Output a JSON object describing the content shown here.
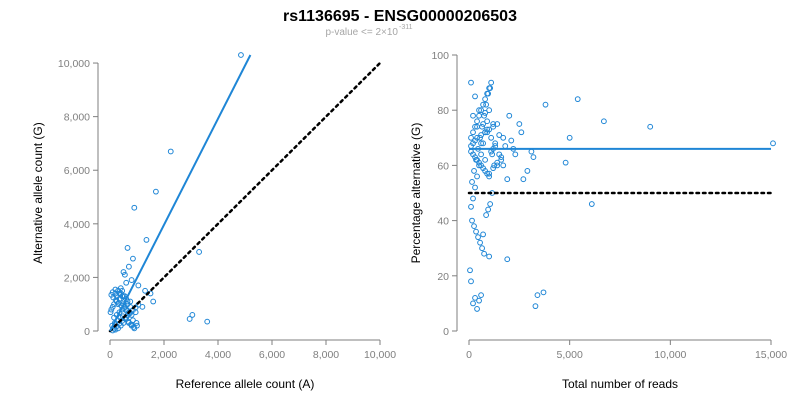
{
  "figure": {
    "title": "rs1136695 - ENSG00000206503",
    "subtitle": "p-value <= 2×10",
    "subtitle_exponent": "-311"
  },
  "colors": {
    "points": "#1f86d6",
    "fit_line": "#1f86d6",
    "reference_line": "#000000",
    "axis": "#7f7f7f"
  },
  "chart_data": [
    {
      "type": "scatter",
      "title": "",
      "xlabel": "Reference allele count (A)",
      "ylabel": "Alternative allele count (G)",
      "xlim": [
        0,
        10000
      ],
      "ylim": [
        0,
        10300
      ],
      "xticks": [
        0,
        2000,
        4000,
        6000,
        8000,
        10000
      ],
      "xtick_labels": [
        "0",
        "2,000",
        "4,000",
        "6,000",
        "8,000",
        "10,000"
      ],
      "yticks": [
        0,
        2000,
        4000,
        6000,
        8000,
        10000
      ],
      "ytick_labels": [
        "0",
        "2,000",
        "4,000",
        "6,000",
        "8,000",
        "10,000"
      ],
      "grid": false,
      "fit_line": {
        "x": [
          0,
          5200
        ],
        "y": [
          0,
          10300
        ]
      },
      "reference_line": {
        "x": [
          0,
          10000
        ],
        "y": [
          0,
          10000
        ],
        "dashed": true
      },
      "points": {
        "x": [
          4850,
          2250,
          1700,
          1350,
          900,
          850,
          650,
          700,
          500,
          550,
          800,
          1050,
          1300,
          1500,
          3300,
          3050,
          2950,
          3600,
          1600,
          1200,
          950,
          600,
          400,
          300,
          200,
          450,
          350,
          250,
          150,
          100,
          50,
          20,
          600,
          700,
          800,
          900,
          1000,
          750,
          650,
          550,
          450,
          350,
          250,
          300,
          400,
          500,
          600,
          700,
          800,
          850,
          500,
          400,
          300,
          200,
          100,
          150,
          250,
          350,
          450,
          550,
          650,
          750,
          600,
          500,
          400,
          300,
          200,
          100,
          50,
          120,
          220,
          320,
          420,
          520,
          620,
          720,
          380,
          280,
          180,
          80,
          480,
          580,
          680,
          780,
          880,
          980,
          150,
          250,
          350,
          450,
          550,
          650,
          750,
          850,
          950,
          1050
        ],
        "y": [
          10300,
          6700,
          5200,
          3400,
          4600,
          2700,
          3100,
          2400,
          2200,
          2100,
          1900,
          1700,
          1500,
          1400,
          2950,
          600,
          450,
          350,
          1100,
          900,
          700,
          1800,
          1600,
          1500,
          1400,
          1300,
          1200,
          1100,
          1000,
          900,
          800,
          700,
          500,
          300,
          200,
          100,
          200,
          900,
          1100,
          1300,
          1500,
          1400,
          1300,
          1000,
          1200,
          1000,
          800,
          700,
          600,
          400,
          300,
          200,
          100,
          50,
          20,
          500,
          600,
          700,
          800,
          900,
          1000,
          1100,
          1200,
          1300,
          1400,
          1500,
          1550,
          1450,
          1350,
          1250,
          1150,
          1050,
          950,
          850,
          750,
          650,
          500,
          400,
          300,
          200,
          550,
          450,
          350,
          250,
          150,
          300,
          80,
          180,
          280,
          380,
          480,
          580,
          680,
          780,
          880,
          980
        ]
      }
    },
    {
      "type": "scatter",
      "title": "",
      "xlabel": "Total number of reads",
      "ylabel": "Percentage alternative (G)",
      "xlim": [
        0,
        15000
      ],
      "ylim": [
        0,
        100
      ],
      "xticks": [
        0,
        5000,
        10000,
        15000
      ],
      "xtick_labels": [
        "0",
        "5,000",
        "10,000",
        "15,000"
      ],
      "yticks": [
        0,
        20,
        40,
        60,
        80,
        100
      ],
      "ytick_labels": [
        "0",
        "20",
        "40",
        "60",
        "80",
        "100"
      ],
      "grid": false,
      "fit_line": {
        "x": [
          0,
          15000
        ],
        "y": [
          66,
          66
        ]
      },
      "reference_line": {
        "x": [
          0,
          15000
        ],
        "y": [
          50,
          50
        ],
        "dashed": true
      },
      "points": {
        "x": [
          15100,
          9000,
          6700,
          6100,
          5400,
          5000,
          4800,
          3300,
          3400,
          3700,
          3800,
          3100,
          3200,
          2900,
          2700,
          2600,
          2500,
          2300,
          2200,
          2100,
          2000,
          1900,
          1800,
          1700,
          1600,
          1500,
          1400,
          1300,
          1200,
          1100,
          1000,
          900,
          800,
          700,
          600,
          500,
          400,
          300,
          200,
          100,
          50,
          1900,
          1700,
          1500,
          1300,
          1100,
          900,
          700,
          500,
          300,
          100,
          800,
          600,
          400,
          200,
          1000,
          1200,
          1400,
          1600,
          150,
          250,
          350,
          450,
          550,
          650,
          750,
          850,
          950,
          1050,
          1150,
          1250,
          100,
          200,
          300,
          400,
          500,
          600,
          700,
          800,
          900,
          1000,
          150,
          250,
          350,
          450,
          550,
          650,
          750,
          850,
          950,
          1050,
          1150,
          100,
          200,
          300,
          400,
          500,
          600,
          700,
          800,
          900,
          1000,
          1100,
          1200,
          100,
          200,
          300,
          400,
          500,
          600,
          700,
          800,
          900,
          1000,
          100,
          200,
          300,
          400,
          600,
          800,
          1000,
          1200,
          1400
        ],
        "y": [
          68,
          74,
          76,
          46,
          84,
          70,
          61,
          9,
          13,
          14,
          82,
          65,
          63,
          58,
          55,
          72,
          75,
          64,
          66,
          69,
          78,
          26,
          67,
          70,
          62,
          71,
          60,
          68,
          75,
          65,
          27,
          73,
          79,
          35,
          13,
          11,
          8,
          12,
          10,
          18,
          22,
          55,
          60,
          64,
          67,
          70,
          72,
          75,
          80,
          85,
          90,
          62,
          68,
          74,
          78,
          57,
          59,
          61,
          63,
          54,
          58,
          62,
          66,
          70,
          74,
          78,
          82,
          86,
          88,
          64,
          60,
          45,
          48,
          52,
          56,
          60,
          64,
          68,
          72,
          76,
          80,
          40,
          38,
          36,
          34,
          32,
          30,
          28,
          42,
          44,
          46,
          50,
          70,
          72,
          74,
          76,
          78,
          80,
          82,
          84,
          86,
          88,
          90,
          66,
          65,
          64,
          63,
          62,
          61,
          60,
          59,
          58,
          57,
          56,
          67,
          68,
          69,
          70,
          71,
          72,
          73,
          74,
          75
        ]
      }
    }
  ]
}
